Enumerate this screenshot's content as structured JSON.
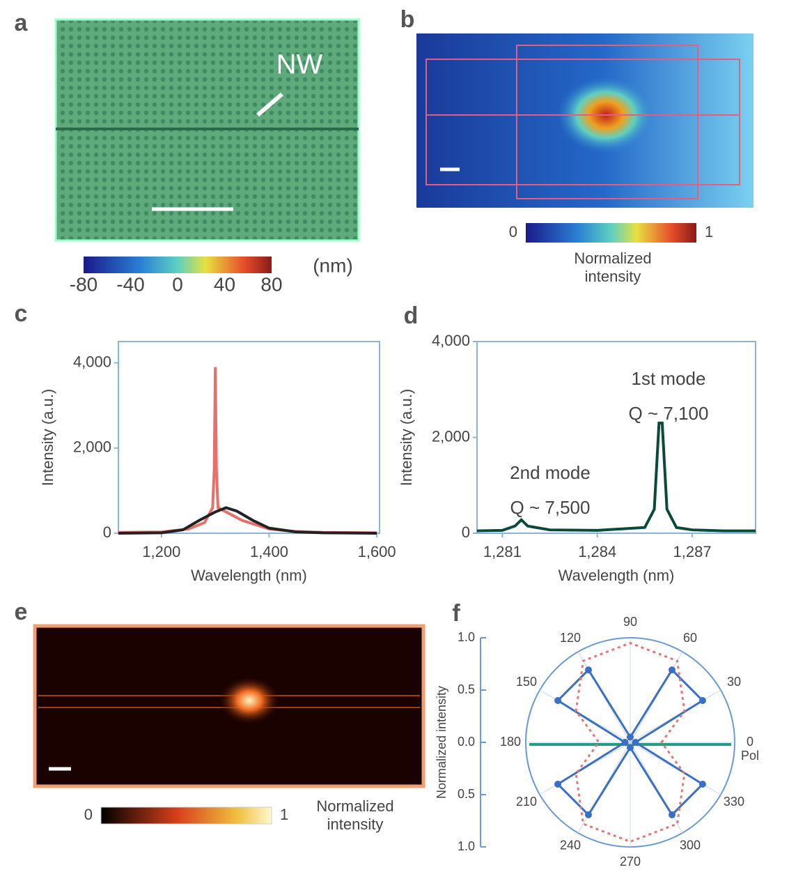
{
  "figure": {
    "a": {
      "label": "a",
      "annotation": "NW",
      "colorbar": {
        "lim": [
          -80,
          80
        ],
        "ticks": [
          -80,
          -40,
          0,
          40,
          80
        ],
        "unit": "(nm)"
      }
    },
    "b": {
      "label": "b",
      "colorbar": {
        "lim": [
          0,
          1
        ],
        "ticks": [
          0,
          1
        ],
        "title": [
          "Normalized",
          "intensity"
        ]
      }
    },
    "e": {
      "label": "e",
      "colorbar": {
        "lim": [
          0,
          1
        ],
        "ticks": [
          0,
          1
        ],
        "title": [
          "Normalized",
          "intensity"
        ]
      }
    }
  },
  "chart_data": [
    {
      "panel": "c",
      "type": "line",
      "xlabel": "Wavelength (nm)",
      "ylabel": "Intensity (a.u.)",
      "xlim": [
        1120,
        1605
      ],
      "ylim": [
        0,
        4500
      ],
      "xticks": [
        {
          "value": 1200,
          "label": "1,200"
        },
        {
          "value": 1400,
          "label": "1,400"
        },
        {
          "value": 1600,
          "label": "1,600"
        }
      ],
      "yticks": [
        0,
        {
          "value": 2000,
          "label": "2,000"
        },
        {
          "value": 4000,
          "label": "4,000"
        }
      ],
      "series": [
        {
          "color": "#e8706a",
          "x": [
            1120,
            1200,
            1250,
            1280,
            1295,
            1298,
            1300,
            1302,
            1305,
            1320,
            1350,
            1400,
            1450,
            1500,
            1600
          ],
          "values": [
            20,
            30,
            100,
            250,
            600,
            1500,
            3900,
            1500,
            600,
            500,
            300,
            100,
            40,
            20,
            10
          ]
        },
        {
          "color": "#222222",
          "x": [
            1120,
            1200,
            1240,
            1270,
            1300,
            1320,
            1340,
            1370,
            1400,
            1450,
            1500,
            1600
          ],
          "values": [
            0,
            10,
            80,
            300,
            500,
            600,
            520,
            300,
            120,
            30,
            10,
            0
          ]
        }
      ]
    },
    {
      "panel": "d",
      "type": "line",
      "xlabel": "Wavelength (nm)",
      "ylabel": "Intensity (a.u.)",
      "xlim": [
        1280.2,
        1289
      ],
      "ylim": [
        0,
        4000
      ],
      "xticks": [
        {
          "value": 1281,
          "label": "1,281"
        },
        {
          "value": 1284,
          "label": "1,284"
        },
        {
          "value": 1287,
          "label": "1,287"
        }
      ],
      "yticks": [
        0,
        {
          "value": 2000,
          "label": "2,000"
        },
        {
          "value": 4000,
          "label": "4,000"
        }
      ],
      "annotations": [
        "1st mode",
        "Q ~ 7,100",
        "2nd mode",
        "Q ~ 7,500"
      ],
      "series": [
        {
          "color": "#0b4a3a",
          "x": [
            1280.2,
            1281,
            1281.4,
            1281.6,
            1281.8,
            1282.5,
            1284,
            1285.5,
            1285.8,
            1285.95,
            1286.05,
            1286.2,
            1286.5,
            1287,
            1288,
            1289
          ],
          "values": [
            50,
            60,
            150,
            280,
            150,
            70,
            60,
            120,
            500,
            2300,
            2300,
            500,
            120,
            70,
            50,
            50
          ]
        }
      ]
    },
    {
      "panel": "f",
      "type": "polar",
      "ylabel": "Normalized intensity",
      "annotation": "Pol",
      "thetaticks": [
        0,
        30,
        60,
        90,
        120,
        150,
        180,
        210,
        240,
        270,
        300,
        330
      ],
      "rlim": [
        0,
        1
      ],
      "rticks": [
        {
          "value": 1,
          "label": "1.0"
        },
        {
          "value": 0.5,
          "label": "0.5"
        },
        {
          "value": 0,
          "label": "0.0"
        }
      ],
      "series": [
        {
          "color": "#3a6fc4",
          "markers": true,
          "theta": [
            0,
            30,
            60,
            90,
            120,
            150,
            180,
            210,
            240,
            270,
            300,
            330
          ],
          "values": [
            0.05,
            0.8,
            0.8,
            0.05,
            0.8,
            0.8,
            0.05,
            0.8,
            0.8,
            0.05,
            0.8,
            0.8
          ]
        },
        {
          "color": "#e07878",
          "dashed": true,
          "theta": [
            0,
            30,
            60,
            90,
            120,
            150,
            180,
            210,
            240,
            270,
            300,
            330
          ],
          "values": [
            0.3,
            0.6,
            0.9,
            0.95,
            0.9,
            0.6,
            0.3,
            0.6,
            0.9,
            0.95,
            0.9,
            0.6
          ]
        }
      ]
    }
  ]
}
